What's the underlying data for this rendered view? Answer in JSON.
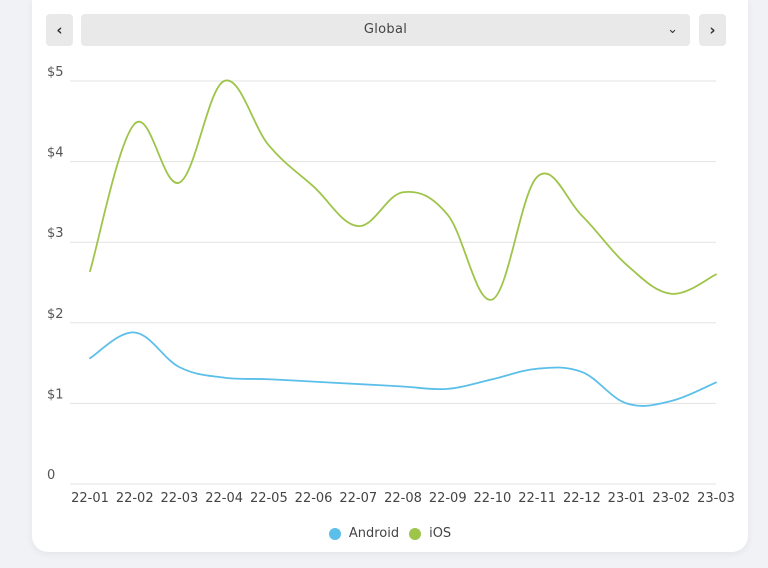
{
  "header": {
    "region_label": "Global",
    "prev_icon": "chevron-left-icon",
    "next_icon": "chevron-right-icon",
    "dropdown_icon": "chevron-down-icon"
  },
  "colors": {
    "Android": "#5bbfea",
    "iOS": "#9ec54a"
  },
  "chart_data": {
    "type": "line",
    "title": "",
    "xlabel": "",
    "ylabel": "",
    "x": [
      "22-01",
      "22-02",
      "22-03",
      "22-04",
      "22-05",
      "22-06",
      "22-07",
      "22-08",
      "22-09",
      "22-10",
      "22-11",
      "22-12",
      "23-01",
      "23-02",
      "23-03"
    ],
    "y_ticks": [
      "0",
      "$1",
      "$2",
      "$3",
      "$4",
      "$5"
    ],
    "ylim": [
      0,
      5
    ],
    "grid": true,
    "legend_position": "bottom",
    "series": [
      {
        "name": "Android",
        "values": [
          1.56,
          1.88,
          1.45,
          1.32,
          1.3,
          1.27,
          1.24,
          1.21,
          1.18,
          1.3,
          1.43,
          1.39,
          1.0,
          1.03,
          1.26
        ]
      },
      {
        "name": "iOS",
        "values": [
          2.64,
          4.47,
          3.74,
          5.0,
          4.2,
          3.69,
          3.2,
          3.62,
          3.34,
          2.29,
          3.81,
          3.33,
          2.72,
          2.36,
          2.6
        ]
      }
    ]
  }
}
